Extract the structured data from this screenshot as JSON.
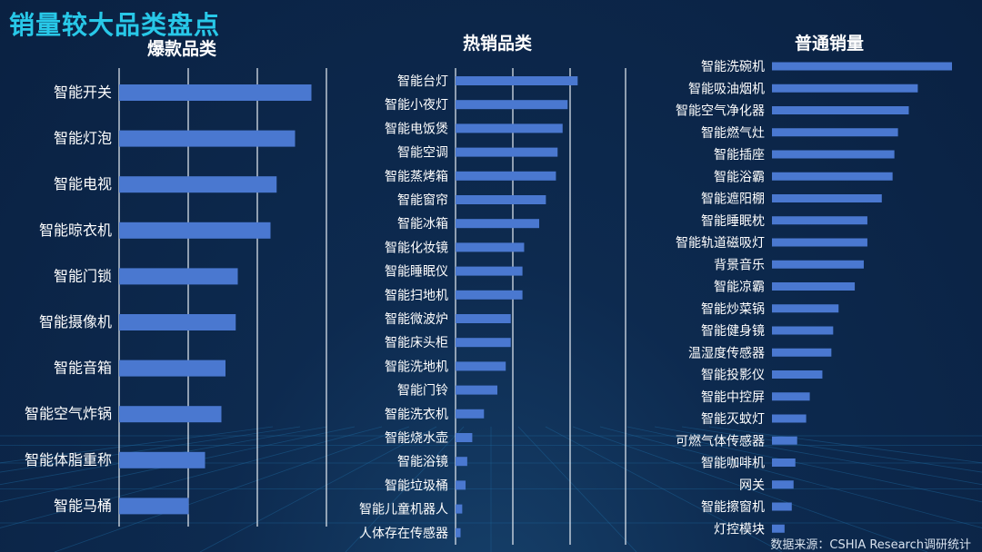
{
  "title": "销量较大品类盘点",
  "source": "数据来源：CSHIA Research调研统计",
  "colors": {
    "title": "#28c8e8",
    "bar": "#4a78d0",
    "background": "#0d2a4f"
  },
  "chart_data": [
    {
      "type": "bar",
      "orientation": "horizontal",
      "title": "爆款品类",
      "xlim": [
        0,
        100
      ],
      "grid": true,
      "categories": [
        "智能开关",
        "智能灯泡",
        "智能电视",
        "智能晾衣机",
        "智能门锁",
        "智能摄像机",
        "智能音箱",
        "智能空气炸锅",
        "智能体脂重称",
        "智能马桶"
      ],
      "values": [
        94,
        86,
        77,
        74,
        58,
        57,
        52,
        50,
        42,
        34
      ]
    },
    {
      "type": "bar",
      "orientation": "horizontal",
      "title": "热销品类",
      "xlim": [
        0,
        100
      ],
      "grid": true,
      "categories": [
        "智能台灯",
        "智能小夜灯",
        "智能电饭煲",
        "智能空调",
        "智能蒸烤箱",
        "智能窗帘",
        "智能冰箱",
        "智能化妆镜",
        "智能睡眠仪",
        "智能扫地机",
        "智能微波炉",
        "智能床头柜",
        "智能洗地机",
        "智能门铃",
        "智能洗衣机",
        "智能烧水壶",
        "智能浴镜",
        "智能垃圾桶",
        "智能儿童机器人",
        "人体存在传感器"
      ],
      "values": [
        73,
        67,
        64,
        61,
        60,
        54,
        50,
        41,
        40,
        40,
        33,
        33,
        30,
        25,
        17,
        10,
        7,
        6,
        4,
        3
      ]
    },
    {
      "type": "bar",
      "orientation": "horizontal",
      "title": "普通销量",
      "xlim": [
        0,
        100
      ],
      "grid": false,
      "categories": [
        "智能洗碗机",
        "智能吸油烟机",
        "智能空气净化器",
        "智能燃气灶",
        "智能插座",
        "智能浴霸",
        "智能遮阳棚",
        "智能睡眠枕",
        "智能轨道磁吸灯",
        "背景音乐",
        "智能凉霸",
        "智能炒菜锅",
        "智能健身镜",
        "温湿度传感器",
        "智能投影仪",
        "智能中控屏",
        "智能灭蚊灯",
        "可燃气体传感器",
        "智能咖啡机",
        "网关",
        "智能擦窗机",
        "灯控模块"
      ],
      "values": [
        100,
        81,
        76,
        70,
        68,
        67,
        61,
        53,
        53,
        51,
        46,
        37,
        34,
        33,
        28,
        21,
        19,
        14,
        13,
        12,
        11,
        7
      ]
    }
  ]
}
